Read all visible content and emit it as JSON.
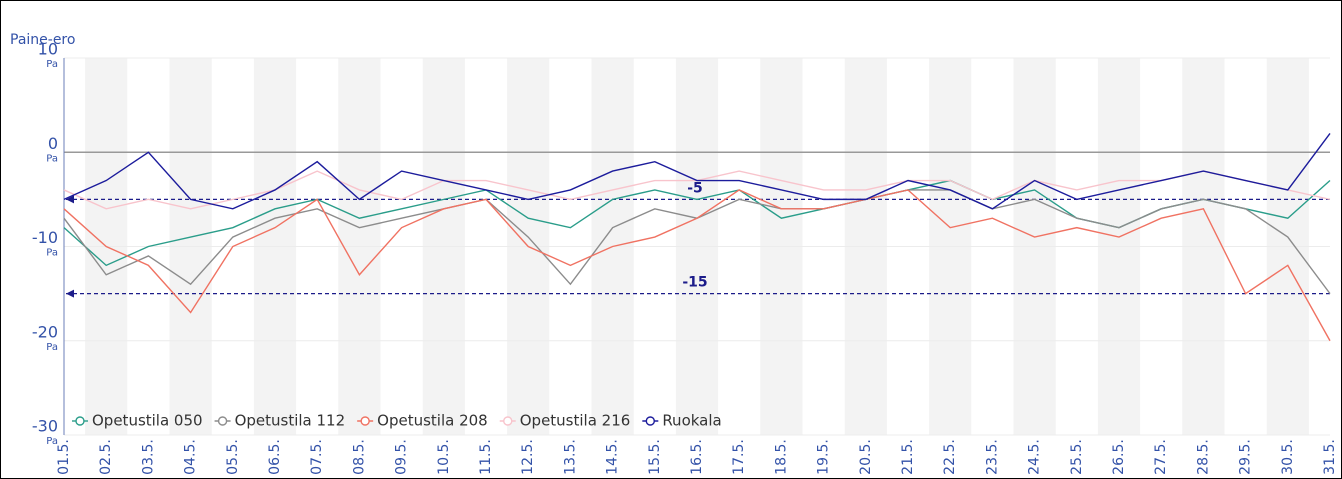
{
  "chart_data": {
    "type": "line",
    "y_label": "Paine-ero",
    "y_unit": "Pa",
    "categories": [
      "01.5.",
      "02.5.",
      "03.5.",
      "04.5.",
      "05.5.",
      "06.5.",
      "07.5.",
      "08.5.",
      "09.5.",
      "10.5.",
      "11.5.",
      "12.5.",
      "13.5.",
      "14.5.",
      "15.5.",
      "16.5.",
      "17.5.",
      "18.5.",
      "19.5.",
      "20.5.",
      "21.5.",
      "22.5.",
      "23.5.",
      "24.5.",
      "25.5.",
      "26.5.",
      "27.5.",
      "28.5.",
      "29.5.",
      "30.5.",
      "31.5."
    ],
    "series": [
      {
        "name": "Opetustila 050",
        "color": "#2a9d8a",
        "values": [
          -8,
          -12,
          -10,
          -9,
          -8,
          -6,
          -5,
          -7,
          -6,
          -5,
          -4,
          -7,
          -8,
          -5,
          -4,
          -5,
          -4,
          -7,
          -6,
          -5,
          -4,
          -3,
          -5,
          -4,
          -7,
          -8,
          -6,
          -5,
          -6,
          -7,
          -3
        ]
      },
      {
        "name": "Opetustila 112",
        "color": "#8c8c8c",
        "values": [
          -7,
          -13,
          -11,
          -14,
          -9,
          -7,
          -6,
          -8,
          -7,
          -6,
          -5,
          -9,
          -14,
          -8,
          -6,
          -7,
          -5,
          -6,
          -6,
          -5,
          -4,
          -4,
          -6,
          -5,
          -7,
          -8,
          -6,
          -5,
          -6,
          -9,
          -15
        ]
      },
      {
        "name": "Opetustila 208",
        "color": "#f07262",
        "values": [
          -6,
          -10,
          -12,
          -17,
          -10,
          -8,
          -5,
          -13,
          -8,
          -6,
          -5,
          -10,
          -12,
          -10,
          -9,
          -7,
          -4,
          -6,
          -6,
          -5,
          -4,
          -8,
          -7,
          -9,
          -8,
          -9,
          -7,
          -6,
          -15,
          -12,
          -20
        ]
      },
      {
        "name": "Opetustila 216",
        "color": "#f8c4cc",
        "values": [
          -4,
          -6,
          -5,
          -6,
          -5,
          -4,
          -2,
          -4,
          -5,
          -3,
          -3,
          -4,
          -5,
          -4,
          -3,
          -3,
          -2,
          -3,
          -4,
          -4,
          -3,
          -3,
          -5,
          -3,
          -4,
          -3,
          -3,
          -2,
          -3,
          -4,
          -5
        ]
      },
      {
        "name": "Ruokala",
        "color": "#1c1c9c",
        "values": [
          -5,
          -3,
          0,
          -5,
          -6,
          -4,
          -1,
          -5,
          -2,
          -3,
          -4,
          -5,
          -4,
          -2,
          -1,
          -3,
          -3,
          -4,
          -5,
          -5,
          -3,
          -4,
          -6,
          -3,
          -5,
          -4,
          -3,
          -2,
          -3,
          -4,
          2
        ]
      }
    ],
    "reference_lines": [
      {
        "value": -5,
        "label": "-5"
      },
      {
        "value": -15,
        "label": "-15"
      }
    ],
    "ylim": [
      -30,
      10
    ],
    "yticks": [
      -30,
      -20,
      -10,
      0,
      10
    ],
    "grid": true,
    "legend": "bottom-left"
  }
}
